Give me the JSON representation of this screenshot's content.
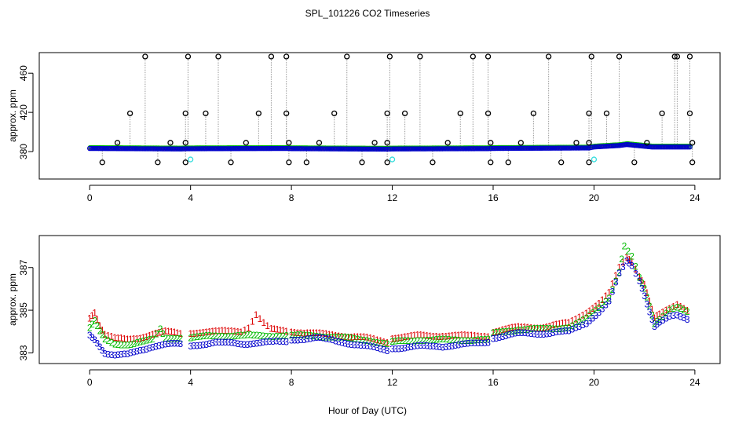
{
  "chart_data": [
    {
      "type": "scatter",
      "title": "SPL_101226  CO2 Timeseries",
      "xlabel": "",
      "ylabel": "approx. ppm",
      "xlim": [
        -2.0,
        25.0
      ],
      "ylim": [
        352,
        481
      ],
      "xticks": [
        0,
        4,
        8,
        12,
        16,
        20,
        24
      ],
      "yticks": [
        380,
        420,
        460
      ],
      "colors": {
        "baseline": "#0000cc",
        "green": "#00bb00",
        "orange": "#ff8800",
        "spike": "#000000",
        "cyan": "#33dddd",
        "lines": "#999999"
      },
      "baseline_level": 383.0,
      "baseline_segments": [
        {
          "x": [
            0.0,
            3.6,
            3.9,
            7.8,
            8.0,
            11.8,
            12.0,
            15.8,
            16.0,
            19.8,
            20.0,
            21.0,
            21.3,
            21.7,
            22.3,
            23.8
          ],
          "y": [
            383.5,
            383.0,
            383.2,
            383.5,
            383.3,
            382.8,
            383.0,
            383.3,
            383.5,
            384.0,
            385.0,
            386.5,
            387.5,
            386.5,
            385.0,
            385.0
          ]
        }
      ],
      "spikes": [
        {
          "x": 0.5,
          "y": 369
        },
        {
          "x": 1.1,
          "y": 389
        },
        {
          "x": 1.6,
          "y": 419
        },
        {
          "x": 2.2,
          "y": 477
        },
        {
          "x": 2.7,
          "y": 369
        },
        {
          "x": 3.2,
          "y": 389
        },
        {
          "x": 3.8,
          "y": 419
        },
        {
          "x": 3.9,
          "y": 477
        },
        {
          "x": 3.8,
          "y": 389
        },
        {
          "x": 3.8,
          "y": 369
        },
        {
          "x": 4.6,
          "y": 419
        },
        {
          "x": 5.1,
          "y": 477
        },
        {
          "x": 5.6,
          "y": 369
        },
        {
          "x": 6.2,
          "y": 389
        },
        {
          "x": 6.7,
          "y": 419
        },
        {
          "x": 7.2,
          "y": 477
        },
        {
          "x": 7.8,
          "y": 477
        },
        {
          "x": 7.8,
          "y": 419
        },
        {
          "x": 7.9,
          "y": 389
        },
        {
          "x": 7.9,
          "y": 369
        },
        {
          "x": 8.6,
          "y": 369
        },
        {
          "x": 9.1,
          "y": 389
        },
        {
          "x": 9.7,
          "y": 419
        },
        {
          "x": 10.2,
          "y": 477
        },
        {
          "x": 10.8,
          "y": 369
        },
        {
          "x": 11.3,
          "y": 389
        },
        {
          "x": 11.8,
          "y": 419
        },
        {
          "x": 11.9,
          "y": 477
        },
        {
          "x": 11.8,
          "y": 389
        },
        {
          "x": 11.8,
          "y": 369
        },
        {
          "x": 12.5,
          "y": 419
        },
        {
          "x": 13.1,
          "y": 477
        },
        {
          "x": 13.6,
          "y": 369
        },
        {
          "x": 14.2,
          "y": 389
        },
        {
          "x": 14.7,
          "y": 419
        },
        {
          "x": 15.2,
          "y": 477
        },
        {
          "x": 15.8,
          "y": 477
        },
        {
          "x": 15.8,
          "y": 419
        },
        {
          "x": 15.9,
          "y": 389
        },
        {
          "x": 15.9,
          "y": 369
        },
        {
          "x": 16.6,
          "y": 369
        },
        {
          "x": 17.1,
          "y": 389
        },
        {
          "x": 17.6,
          "y": 419
        },
        {
          "x": 18.2,
          "y": 477
        },
        {
          "x": 18.7,
          "y": 369
        },
        {
          "x": 19.3,
          "y": 389
        },
        {
          "x": 19.8,
          "y": 419
        },
        {
          "x": 19.9,
          "y": 477
        },
        {
          "x": 19.8,
          "y": 389
        },
        {
          "x": 19.8,
          "y": 369
        },
        {
          "x": 20.5,
          "y": 419
        },
        {
          "x": 21.0,
          "y": 477
        },
        {
          "x": 21.6,
          "y": 369
        },
        {
          "x": 22.1,
          "y": 389
        },
        {
          "x": 22.7,
          "y": 419
        },
        {
          "x": 23.2,
          "y": 477
        },
        {
          "x": 23.3,
          "y": 477
        },
        {
          "x": 23.8,
          "y": 477
        },
        {
          "x": 23.8,
          "y": 419
        },
        {
          "x": 23.9,
          "y": 389
        },
        {
          "x": 23.9,
          "y": 369
        }
      ],
      "cyan_marks": [
        {
          "x": 4.0,
          "y": 372
        },
        {
          "x": 12.0,
          "y": 372
        },
        {
          "x": 20.0,
          "y": 372
        }
      ]
    },
    {
      "type": "scatter",
      "title": "",
      "xlabel": "Hour of Day (UTC)",
      "ylabel": "approx. ppm",
      "xlim": [
        -2.0,
        25.0
      ],
      "ylim": [
        382.5,
        388.5
      ],
      "xticks": [
        0,
        4,
        8,
        12,
        16,
        20,
        24
      ],
      "yticks": [
        383,
        385,
        387
      ],
      "series": [
        {
          "name": "1",
          "label": "1",
          "color": "#dd0000",
          "offset": 0.35,
          "segments": [
            {
              "x": [
                0.0,
                0.2,
                0.4,
                0.6,
                1.0,
                1.5,
                2.0,
                2.5,
                3.0,
                3.6
              ],
              "y": [
                384.6,
                384.9,
                384.3,
                383.9,
                383.7,
                383.6,
                383.7,
                383.9,
                384.0,
                383.9
              ]
            },
            {
              "x": [
                4.0,
                4.5,
                5.0,
                5.5,
                6.0,
                6.3,
                6.6,
                6.9,
                7.2,
                7.8
              ],
              "y": [
                383.9,
                384.0,
                384.0,
                384.0,
                384.0,
                384.2,
                384.8,
                384.4,
                384.1,
                384.0
              ]
            },
            {
              "x": [
                8.0,
                9.0,
                10.0,
                11.0,
                11.8
              ],
              "y": [
                384.0,
                383.9,
                383.8,
                383.7,
                383.5
              ]
            },
            {
              "x": [
                12.0,
                13.0,
                14.0,
                15.0,
                15.8
              ],
              "y": [
                383.7,
                383.8,
                383.8,
                383.8,
                383.8
              ]
            },
            {
              "x": [
                16.0,
                17.0,
                18.0,
                19.0,
                19.7,
                20.2,
                20.6,
                21.0,
                21.3,
                21.5,
                21.8,
                22.0,
                22.2,
                22.4,
                22.6,
                23.0,
                23.3,
                23.7
              ],
              "y": [
                384.0,
                384.2,
                384.2,
                384.4,
                384.9,
                385.3,
                385.8,
                387.0,
                387.5,
                387.3,
                386.6,
                386.2,
                385.4,
                384.6,
                384.8,
                385.1,
                385.3,
                385.0
              ]
            }
          ]
        },
        {
          "name": "2",
          "label": "2",
          "color": "#00bb00",
          "offset": 0.15,
          "segments": [
            {
              "x": [
                0.0,
                0.2,
                0.4,
                0.6,
                1.0,
                1.5,
                2.0,
                2.5,
                2.8,
                3.0,
                3.6
              ],
              "y": [
                384.2,
                384.5,
                384.0,
                383.6,
                383.4,
                383.4,
                383.5,
                383.6,
                384.1,
                383.7,
                383.7
              ]
            },
            {
              "x": [
                4.0,
                5.0,
                6.0,
                7.0,
                7.8
              ],
              "y": [
                383.7,
                383.8,
                383.8,
                383.8,
                383.8
              ]
            },
            {
              "x": [
                8.0,
                9.0,
                10.0,
                11.0,
                11.8
              ],
              "y": [
                383.8,
                383.8,
                383.7,
                383.6,
                383.4
              ]
            },
            {
              "x": [
                12.0,
                13.0,
                14.0,
                15.0,
                15.8
              ],
              "y": [
                383.5,
                383.6,
                383.6,
                383.6,
                383.6
              ]
            },
            {
              "x": [
                16.0,
                17.0,
                18.0,
                19.0,
                19.7,
                20.2,
                20.6,
                21.0,
                21.2,
                21.5,
                21.8,
                22.0,
                22.2,
                22.4,
                22.6,
                23.0,
                23.3,
                23.7
              ],
              "y": [
                383.9,
                384.1,
                384.1,
                384.2,
                384.6,
                385.1,
                385.6,
                386.8,
                388.0,
                387.5,
                386.5,
                386.0,
                385.2,
                384.4,
                384.6,
                385.0,
                385.1,
                384.9
              ]
            }
          ]
        },
        {
          "name": "3",
          "label": "3",
          "color": "#0000cc",
          "offset": -0.05,
          "segments": [
            {
              "x": [
                0.0,
                0.2,
                0.4,
                0.6,
                1.0,
                1.5,
                2.0,
                2.5,
                3.0,
                3.6
              ],
              "y": [
                383.8,
                383.6,
                383.3,
                383.0,
                382.9,
                382.9,
                383.1,
                383.3,
                383.4,
                383.4
              ]
            },
            {
              "x": [
                4.0,
                5.0,
                6.0,
                7.0,
                7.8
              ],
              "y": [
                383.3,
                383.5,
                383.4,
                383.5,
                383.5
              ]
            },
            {
              "x": [
                8.0,
                9.0,
                10.0,
                11.0,
                11.8
              ],
              "y": [
                383.6,
                383.7,
                383.5,
                383.3,
                383.1
              ]
            },
            {
              "x": [
                12.0,
                13.0,
                14.0,
                15.0,
                15.8
              ],
              "y": [
                383.2,
                383.3,
                383.3,
                383.4,
                383.5
              ]
            },
            {
              "x": [
                16.0,
                17.0,
                18.0,
                19.0,
                19.7,
                20.2,
                20.6,
                21.0,
                21.3,
                21.5,
                21.8,
                22.0,
                22.2,
                22.4,
                22.6,
                23.0,
                23.3,
                23.7
              ],
              "y": [
                383.7,
                383.9,
                383.9,
                384.0,
                384.4,
                384.9,
                385.4,
                386.7,
                387.3,
                387.1,
                386.4,
                385.7,
                384.9,
                384.2,
                384.4,
                384.7,
                384.8,
                384.6
              ]
            }
          ]
        }
      ]
    }
  ]
}
